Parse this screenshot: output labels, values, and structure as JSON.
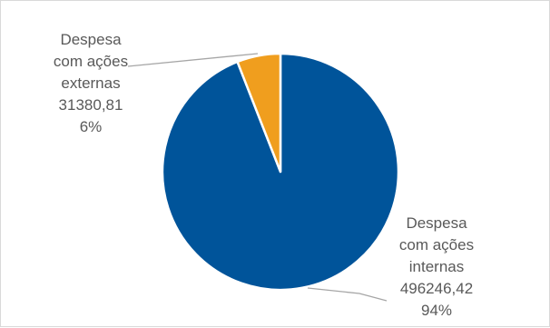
{
  "chart_data": {
    "type": "pie",
    "title": "",
    "legend": "none",
    "slices": [
      {
        "label_lines": [
          "Despesa",
          "com ações",
          "internas"
        ],
        "value_text": "496246,42",
        "value": 496246.42,
        "percent_text": "94%",
        "color": "#00549A"
      },
      {
        "label_lines": [
          "Despesa",
          "com ações",
          "externas"
        ],
        "value_text": "31380,81",
        "value": 31380.81,
        "percent_text": "6%",
        "color": "#F09E1E"
      }
    ],
    "slice_border_color": "#FFFFFF",
    "leader_line_color": "#A6A6A6"
  }
}
